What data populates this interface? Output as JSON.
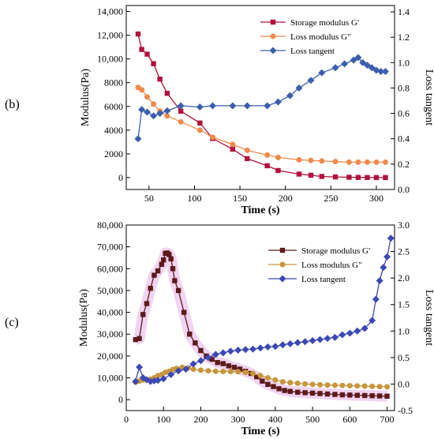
{
  "figure": {
    "panel_b_label": "(b)",
    "panel_c_label": "(c)"
  },
  "colors": {
    "panel_b": {
      "storage": "#b0123c",
      "loss": "#f08a4b",
      "tangent": "#3a5fad"
    },
    "panel_c": {
      "storage": "#5c1a1a",
      "loss": "#c8963c",
      "tangent": "#3c48b4",
      "highlight": "#e8b8e8"
    }
  },
  "chart_data": [
    {
      "id": "b",
      "type": "line",
      "xlabel": "Time (s)",
      "ylabel": "Modulus(Pa)",
      "y2label": "Loss tangent",
      "xlim": [
        25,
        320
      ],
      "ylim": [
        -1000,
        14500
      ],
      "y2lim": [
        0,
        1.45
      ],
      "xticks": [
        50,
        100,
        150,
        200,
        250,
        300
      ],
      "xtick_labels": [
        "50",
        "100",
        "150",
        "200",
        "250",
        "300"
      ],
      "yticks": [
        0,
        2000,
        4000,
        6000,
        8000,
        10000,
        12000,
        14000
      ],
      "ytick_labels": [
        "0",
        "2000",
        "4000",
        "6000",
        "8000",
        "10,000",
        "12,000",
        "14,000"
      ],
      "y2ticks": [
        0,
        0.2,
        0.4,
        0.6,
        0.8,
        1.0,
        1.2,
        1.4
      ],
      "y2tick_labels": [
        "0.0",
        "0.2",
        "0.4",
        "0.6",
        "0.8",
        "1.0",
        "1.2",
        "1.4"
      ],
      "legend_position": "top-right",
      "series": [
        {
          "name": "Storage modulus G'",
          "axis": "left",
          "marker": "square",
          "x": [
            38,
            42,
            48,
            55,
            62,
            70,
            85,
            106,
            120,
            142,
            158,
            180,
            192,
            215,
            228,
            240,
            255,
            270,
            280,
            290,
            300,
            310
          ],
          "y": [
            12100,
            10800,
            10400,
            9600,
            8300,
            7100,
            5600,
            4600,
            3300,
            2400,
            1600,
            1000,
            600,
            300,
            200,
            100,
            60,
            30,
            20,
            10,
            5,
            5
          ]
        },
        {
          "name": "Loss modulus G\"",
          "axis": "left",
          "marker": "circle",
          "x": [
            38,
            42,
            48,
            55,
            62,
            70,
            85,
            106,
            120,
            142,
            158,
            180,
            192,
            215,
            228,
            240,
            255,
            270,
            280,
            290,
            300,
            310
          ],
          "y": [
            7600,
            7400,
            6800,
            6200,
            5600,
            5200,
            4700,
            4000,
            3400,
            2800,
            2300,
            1900,
            1700,
            1500,
            1450,
            1400,
            1350,
            1300,
            1300,
            1300,
            1300,
            1300
          ]
        },
        {
          "name": "Loss tangent",
          "axis": "right",
          "marker": "diamond",
          "x": [
            38,
            42,
            48,
            55,
            62,
            70,
            85,
            106,
            120,
            142,
            158,
            180,
            192,
            205,
            215,
            228,
            240,
            255,
            265,
            275,
            280,
            285,
            290,
            295,
            300,
            305,
            310
          ],
          "y": [
            0.4,
            0.63,
            0.61,
            0.58,
            0.6,
            0.62,
            0.66,
            0.65,
            0.66,
            0.66,
            0.66,
            0.66,
            0.69,
            0.74,
            0.8,
            0.86,
            0.92,
            0.96,
            0.99,
            1.02,
            1.04,
            1.0,
            0.98,
            0.96,
            0.94,
            0.93,
            0.93
          ]
        }
      ]
    },
    {
      "id": "c",
      "type": "line",
      "xlabel": "Time (s)",
      "ylabel": "Modulus(Pa)",
      "y2label": "Loss tangent",
      "xlim": [
        0,
        720
      ],
      "ylim": [
        -5000,
        80000
      ],
      "y2lim": [
        -0.5,
        3.0
      ],
      "xticks": [
        0,
        100,
        200,
        300,
        400,
        500,
        600,
        700
      ],
      "xtick_labels": [
        "0",
        "100",
        "200",
        "300",
        "400",
        "500",
        "600",
        "700"
      ],
      "yticks": [
        0,
        10000,
        20000,
        30000,
        40000,
        50000,
        60000,
        70000,
        80000
      ],
      "ytick_labels": [
        "0",
        "10,000",
        "20,000",
        "30,000",
        "40,000",
        "50,000",
        "60,000",
        "70,000",
        "80,000"
      ],
      "y2ticks": [
        -0.5,
        0.0,
        0.5,
        1.0,
        1.5,
        2.0,
        2.5,
        3.0
      ],
      "y2tick_labels": [
        "-0.5",
        "0.0",
        "0.5",
        "1.0",
        "1.5",
        "2.0",
        "2.5",
        "3.0"
      ],
      "legend_position": "top-center",
      "series": [
        {
          "name": "Storage modulus G'",
          "axis": "left",
          "marker": "square",
          "x": [
            25,
            35,
            45,
            55,
            65,
            75,
            85,
            95,
            100,
            105,
            110,
            115,
            120,
            125,
            130,
            140,
            155,
            170,
            185,
            200,
            215,
            230,
            245,
            260,
            275,
            290,
            305,
            320,
            335,
            350,
            365,
            380,
            395,
            410,
            425,
            440,
            460,
            480,
            500,
            520,
            540,
            560,
            580,
            600,
            620,
            640,
            660,
            680,
            700
          ],
          "y": [
            27500,
            28000,
            39000,
            44000,
            51000,
            57000,
            59000,
            62000,
            64000,
            67000,
            67200,
            66500,
            64500,
            60000,
            54500,
            50000,
            40000,
            30000,
            26000,
            22500,
            20000,
            18500,
            17000,
            16500,
            15500,
            14800,
            14000,
            13000,
            12000,
            10500,
            8500,
            7000,
            6000,
            5000,
            4200,
            3800,
            3400,
            3200,
            3000,
            2800,
            2600,
            2400,
            2200,
            2100,
            2000,
            1900,
            1800,
            1700,
            1600
          ]
        },
        {
          "name": "Loss modulus G\"",
          "axis": "left",
          "marker": "circle",
          "x": [
            25,
            35,
            45,
            55,
            65,
            75,
            85,
            95,
            105,
            115,
            125,
            135,
            150,
            165,
            180,
            200,
            220,
            240,
            260,
            280,
            300,
            320,
            340,
            360,
            380,
            400,
            420,
            440,
            460,
            480,
            500,
            520,
            540,
            560,
            580,
            600,
            620,
            640,
            660,
            680,
            700
          ],
          "y": [
            8000,
            8500,
            9000,
            9200,
            9400,
            10000,
            11000,
            11500,
            12500,
            13000,
            13800,
            14300,
            14800,
            14500,
            14000,
            13500,
            13200,
            13000,
            12900,
            12900,
            12800,
            12500,
            12000,
            11000,
            10000,
            9000,
            8200,
            7800,
            7500,
            7200,
            7000,
            6800,
            6700,
            6600,
            6500,
            6400,
            6300,
            6200,
            6100,
            6000,
            5900
          ]
        },
        {
          "name": "Loss tangent",
          "axis": "right",
          "marker": "diamond",
          "x": [
            25,
            35,
            45,
            55,
            65,
            75,
            85,
            100,
            120,
            140,
            160,
            180,
            200,
            220,
            240,
            260,
            280,
            300,
            320,
            340,
            360,
            380,
            400,
            420,
            440,
            460,
            480,
            500,
            520,
            540,
            560,
            580,
            600,
            620,
            640,
            660,
            670,
            680,
            690,
            700,
            710
          ],
          "y": [
            0.05,
            0.32,
            0.12,
            0.08,
            0.05,
            0.06,
            0.07,
            0.1,
            0.18,
            0.25,
            0.28,
            0.38,
            0.44,
            0.5,
            0.56,
            0.59,
            0.62,
            0.64,
            0.65,
            0.66,
            0.68,
            0.7,
            0.71,
            0.74,
            0.76,
            0.78,
            0.8,
            0.82,
            0.84,
            0.86,
            0.88,
            0.93,
            0.96,
            1.0,
            1.05,
            1.2,
            1.6,
            1.95,
            2.2,
            2.4,
            2.75
          ]
        }
      ]
    }
  ]
}
